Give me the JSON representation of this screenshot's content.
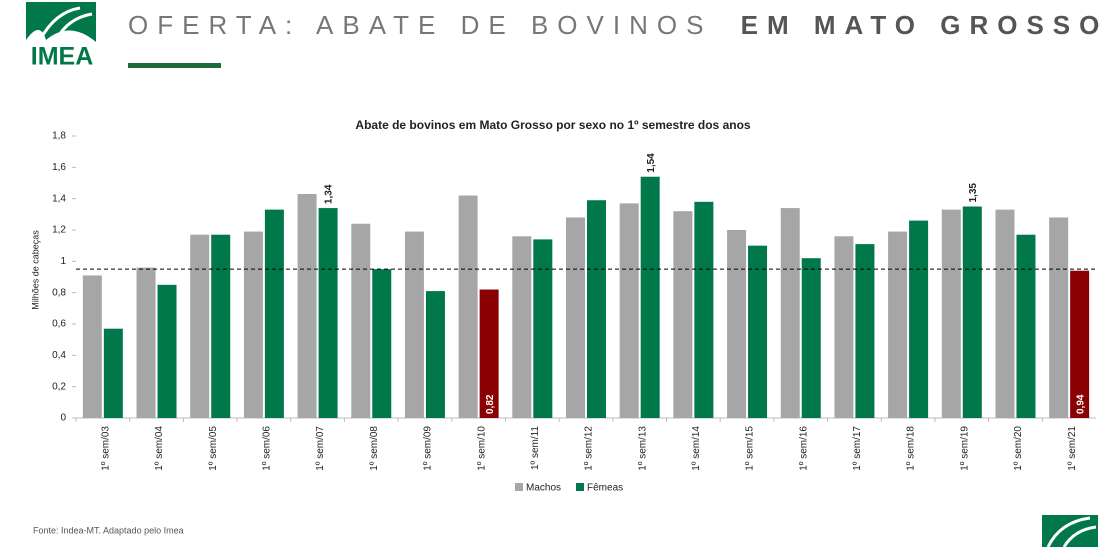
{
  "header": {
    "logo": "IMEA",
    "title_light": "OFERTA: ABATE DE BOVINOS",
    "title_bold": "EM MATO GROSSO"
  },
  "source": "Fonte: Indea-MT. Adaptado pelo Imea",
  "chart_data": {
    "type": "bar",
    "title": "Abate de bovinos em Mato Grosso por sexo no 1º semestre dos anos",
    "y_label": "Milhões de cabeças",
    "categories": [
      "1º sem/03",
      "1º sem/04",
      "1º sem/05",
      "1º sem/06",
      "1º sem/07",
      "1º sem/08",
      "1º sem/09",
      "1º sem/10",
      "1º sem/11",
      "1º sem/12",
      "1º sem/13",
      "1º sem/14",
      "1º sem/15",
      "1º sem/16",
      "1º sem/17",
      "1º sem/18",
      "1º sem/19",
      "1º sem/20",
      "1º sem/21"
    ],
    "series": [
      {
        "name": "Machos",
        "color": "#a6a6a6",
        "values": [
          0.91,
          0.96,
          1.17,
          1.19,
          1.43,
          1.24,
          1.19,
          1.42,
          1.16,
          1.28,
          1.37,
          1.32,
          1.2,
          1.34,
          1.16,
          1.19,
          1.33,
          1.33,
          1.28
        ]
      },
      {
        "name": "Fêmeas",
        "color": "#00784a",
        "values": [
          0.57,
          0.85,
          1.17,
          1.33,
          1.34,
          0.95,
          0.81,
          0.82,
          1.14,
          1.39,
          1.54,
          1.38,
          1.1,
          1.02,
          1.11,
          1.26,
          1.35,
          1.17,
          0.94
        ],
        "colors": [
          "#00784a",
          "#00784a",
          "#00784a",
          "#00784a",
          "#00784a",
          "#00784a",
          "#00784a",
          "#8b0000",
          "#00784a",
          "#00784a",
          "#00784a",
          "#00784a",
          "#00784a",
          "#00784a",
          "#00784a",
          "#00784a",
          "#00784a",
          "#00784a",
          "#8b0000"
        ],
        "value_labels": [
          null,
          null,
          null,
          null,
          "1,34",
          null,
          null,
          "0,82",
          null,
          null,
          "1,54",
          null,
          null,
          null,
          null,
          null,
          "1,35",
          null,
          "0,94"
        ]
      }
    ],
    "reference_line": 0.95,
    "ylim": [
      0,
      1.8
    ],
    "yticks": [
      0,
      {
        "value": 0.2,
        "label": "0,2"
      },
      {
        "value": 0.4,
        "label": "0,4"
      },
      {
        "value": 0.6,
        "label": "0,6"
      },
      {
        "value": 0.8,
        "label": "0,8"
      },
      1,
      {
        "value": 1.2,
        "label": "1,2"
      },
      {
        "value": 1.4,
        "label": "1,4"
      },
      {
        "value": 1.6,
        "label": "1,6"
      },
      {
        "value": 1.8,
        "label": "1,8"
      }
    ],
    "legend": "bottom"
  }
}
